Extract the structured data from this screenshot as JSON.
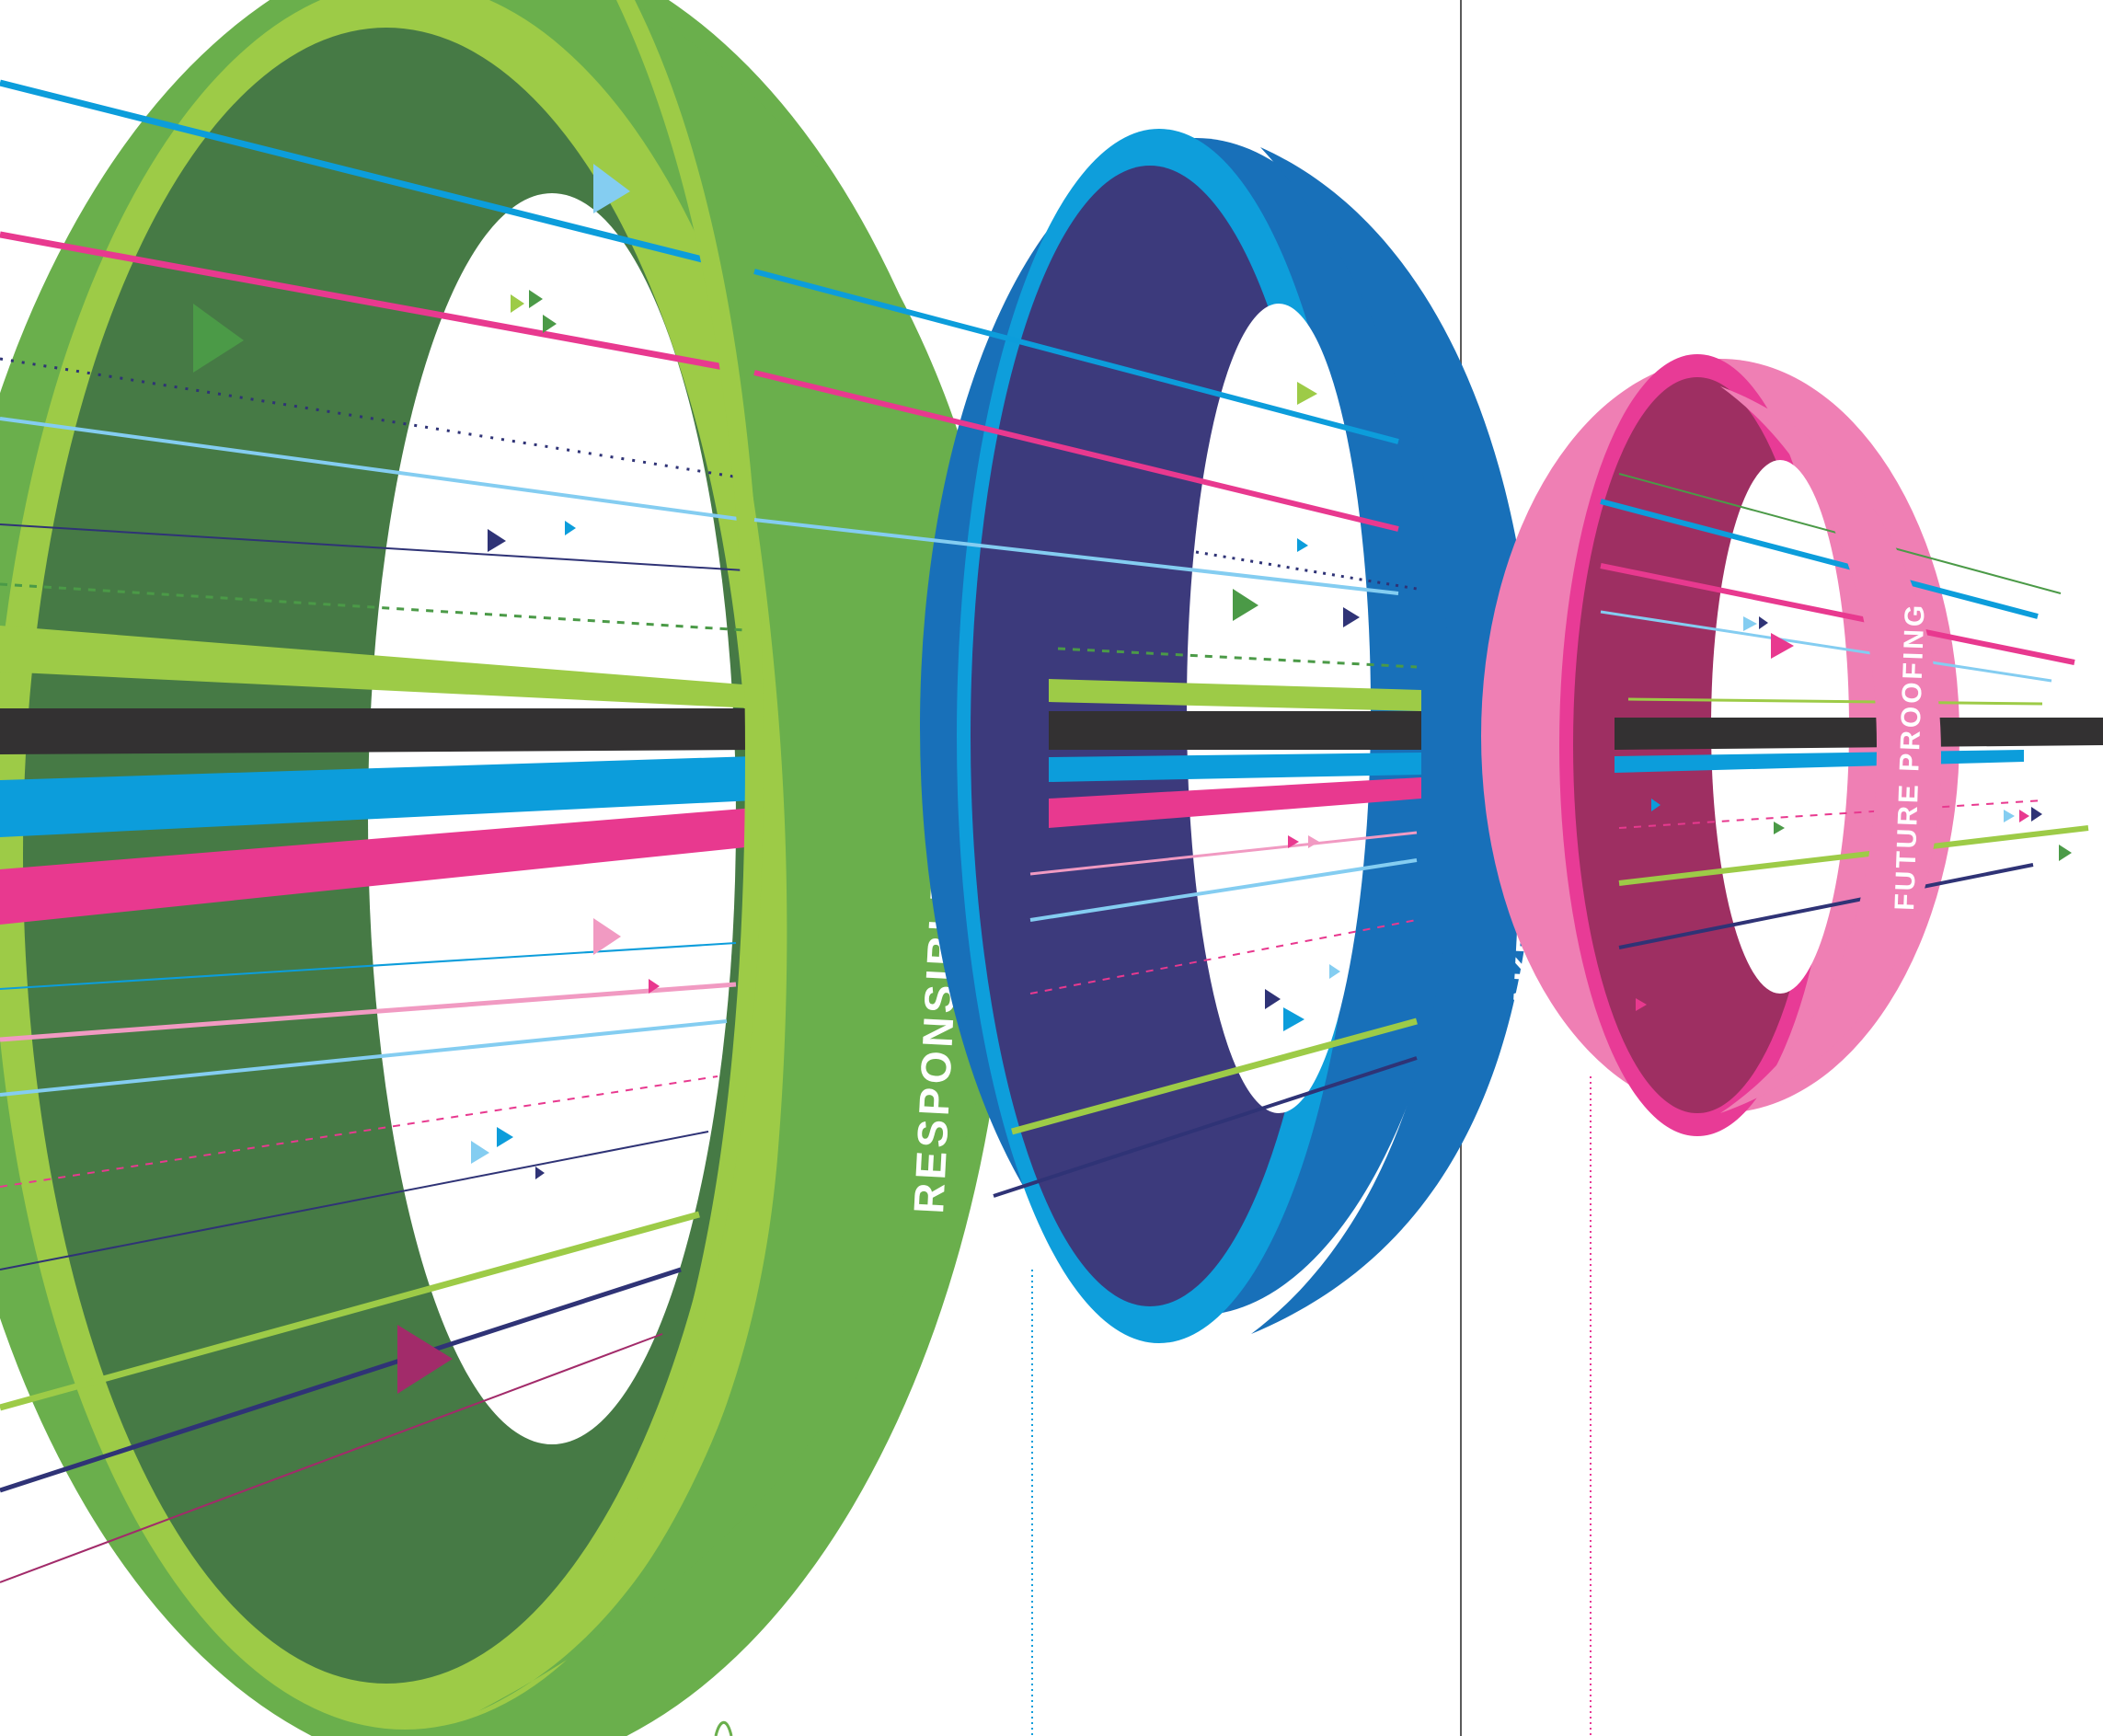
{
  "rings": [
    {
      "id": "responsible-stewardship",
      "label": "RESPONSIBLE STEWARDSHIP",
      "colors": {
        "outer": "#6aaf4c",
        "rim": "#9dcb47",
        "inner": "#467a45"
      }
    },
    {
      "id": "stakeholder-engagement",
      "label": "STAKEHOLDER ENGAGEMENT",
      "colors": {
        "outer": "#1870b9",
        "rim": "#0e9edb",
        "inner": "#3c3a7c"
      }
    },
    {
      "id": "future-proofing",
      "label": "FUTURE PROOFING",
      "colors": {
        "outer": "#ef7fb4",
        "rim": "#e83b96",
        "inner": "#9e2f62"
      }
    }
  ],
  "palette": {
    "black": "#333132",
    "blue": "#0c9ddb",
    "magenta": "#e8398f",
    "lime": "#9dcb47",
    "navy": "#2f3376",
    "light-blue": "#84cdf1",
    "pink": "#f19ac2",
    "green": "#4b9a47",
    "purple": "#a22b6a",
    "divider": "#5a5a5a"
  },
  "icons": [
    "arrow-triangle-icon"
  ]
}
